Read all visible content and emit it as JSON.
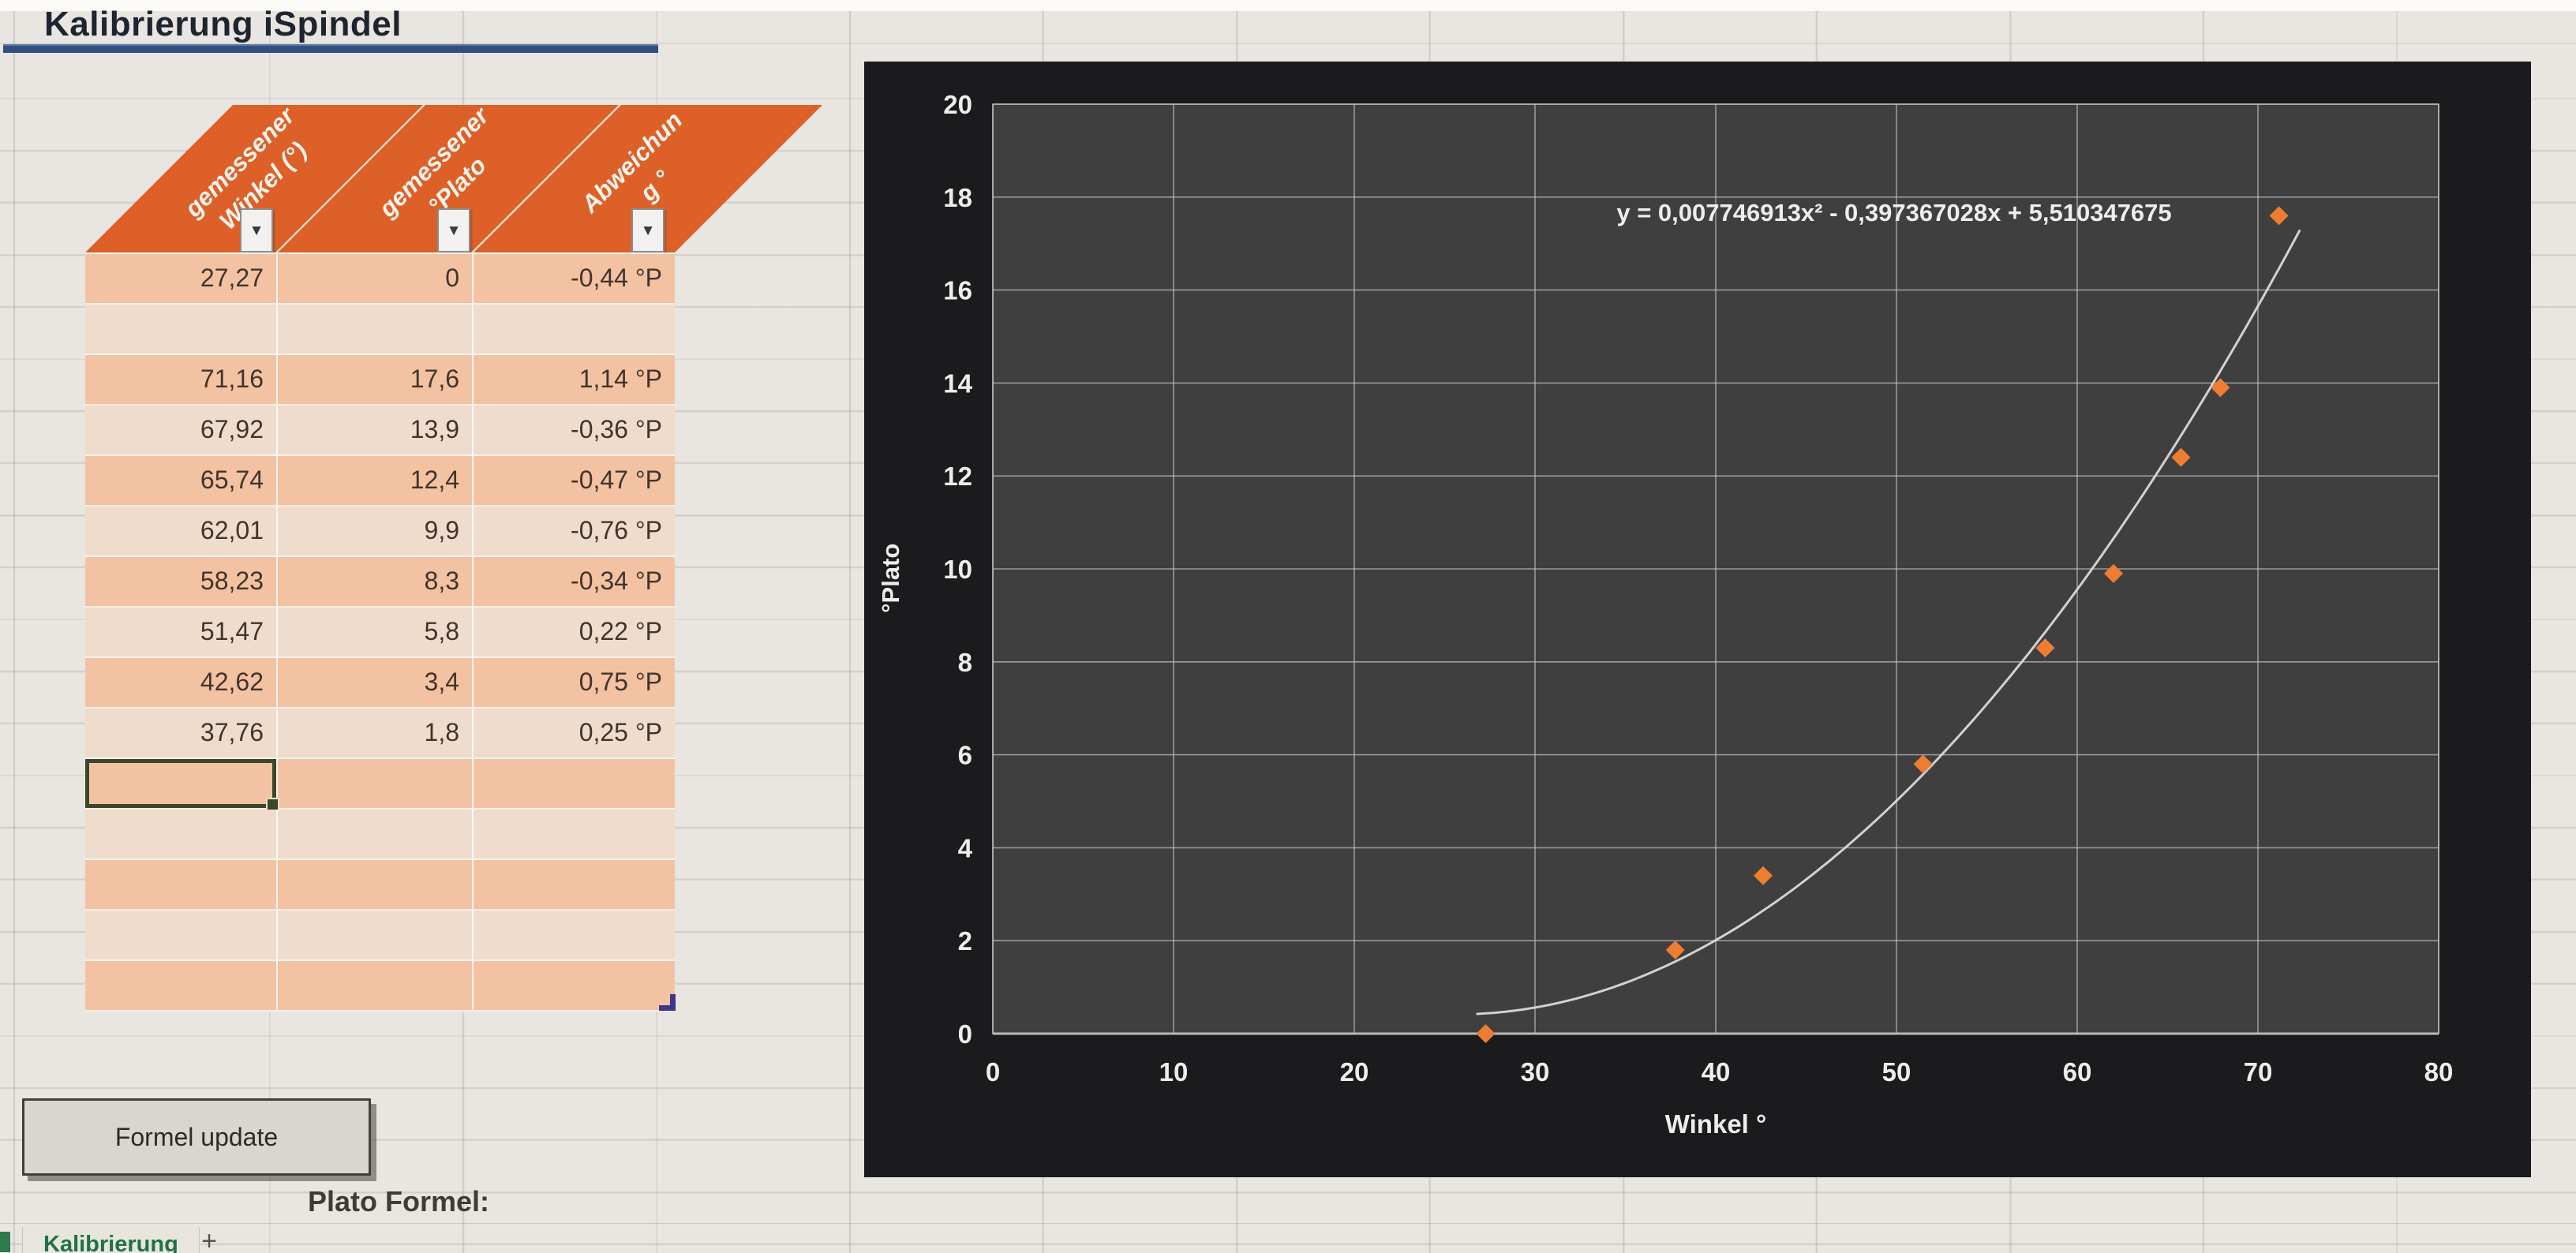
{
  "title": "Kalibrierung iSpindel",
  "table": {
    "filter_icon": "▼",
    "headers": [
      {
        "line1": "gemessener",
        "line2": "Winkel (°)"
      },
      {
        "line1": "gemessener",
        "line2": "°Plato"
      },
      {
        "line1": "Abweichun",
        "line2": "g °"
      }
    ],
    "rows": [
      [
        "27,27",
        "0",
        "-0,44 °P"
      ],
      [
        "",
        "",
        ""
      ],
      [
        "71,16",
        "17,6",
        "1,14 °P"
      ],
      [
        "67,92",
        "13,9",
        "-0,36 °P"
      ],
      [
        "65,74",
        "12,4",
        "-0,47 °P"
      ],
      [
        "62,01",
        "9,9",
        "-0,76 °P"
      ],
      [
        "58,23",
        "8,3",
        "-0,34 °P"
      ],
      [
        "51,47",
        "5,8",
        "0,22 °P"
      ],
      [
        "42,62",
        "3,4",
        "0,75 °P"
      ],
      [
        "37,76",
        "1,8",
        "0,25 °P"
      ],
      [
        "",
        "",
        ""
      ],
      [
        "",
        "",
        ""
      ],
      [
        "",
        "",
        ""
      ],
      [
        "",
        "",
        ""
      ],
      [
        "",
        "",
        ""
      ]
    ],
    "selected_cell": {
      "row": 10,
      "col": 0
    }
  },
  "buttons": {
    "formel_update": "Formel update"
  },
  "labels": {
    "plato_formel": "Plato Formel:"
  },
  "sheet_tabs": {
    "active": "Kalibrierung",
    "add": "+"
  },
  "colors": {
    "header_orange": "#DD6029",
    "band_dark": "#F3C2A2",
    "band_light": "#EFDCCC",
    "selection_green": "#3E4629",
    "table_handle_purple": "#3C3690",
    "title_underline": "#31507F",
    "tab_green": "#1F7246"
  },
  "chart_data": {
    "type": "scatter",
    "title": "",
    "xlabel": "Winkel °",
    "ylabel": "°Plato",
    "xlim": [
      0,
      80
    ],
    "ylim": [
      0,
      20
    ],
    "x_ticks": [
      0,
      10,
      20,
      30,
      40,
      50,
      60,
      70,
      80
    ],
    "y_ticks": [
      0,
      2,
      4,
      6,
      8,
      10,
      12,
      14,
      16,
      18,
      20
    ],
    "grid": true,
    "legend_position": "none",
    "equation": "y = 0,007746913x² - 0,397367028x + 5,510347675",
    "points": [
      [
        27.27,
        0
      ],
      [
        37.76,
        1.8
      ],
      [
        42.62,
        3.4
      ],
      [
        51.47,
        5.8
      ],
      [
        58.23,
        8.3
      ],
      [
        62.01,
        9.9
      ],
      [
        65.74,
        12.4
      ],
      [
        67.92,
        13.9
      ],
      [
        71.16,
        17.6
      ]
    ],
    "trendline": {
      "kind": "quadratic",
      "a": 0.007746913,
      "b": -0.397367028,
      "c": 5.510347675,
      "x_start": 26.8,
      "x_end": 72.6
    },
    "colors": {
      "chart_bg": "#1B1A1C",
      "plot_bg": "#403F40",
      "grid": "#C9C9C9",
      "text": "#EDEDED",
      "point": "#ED7D31",
      "trendline": "#D9D9D9"
    }
  }
}
